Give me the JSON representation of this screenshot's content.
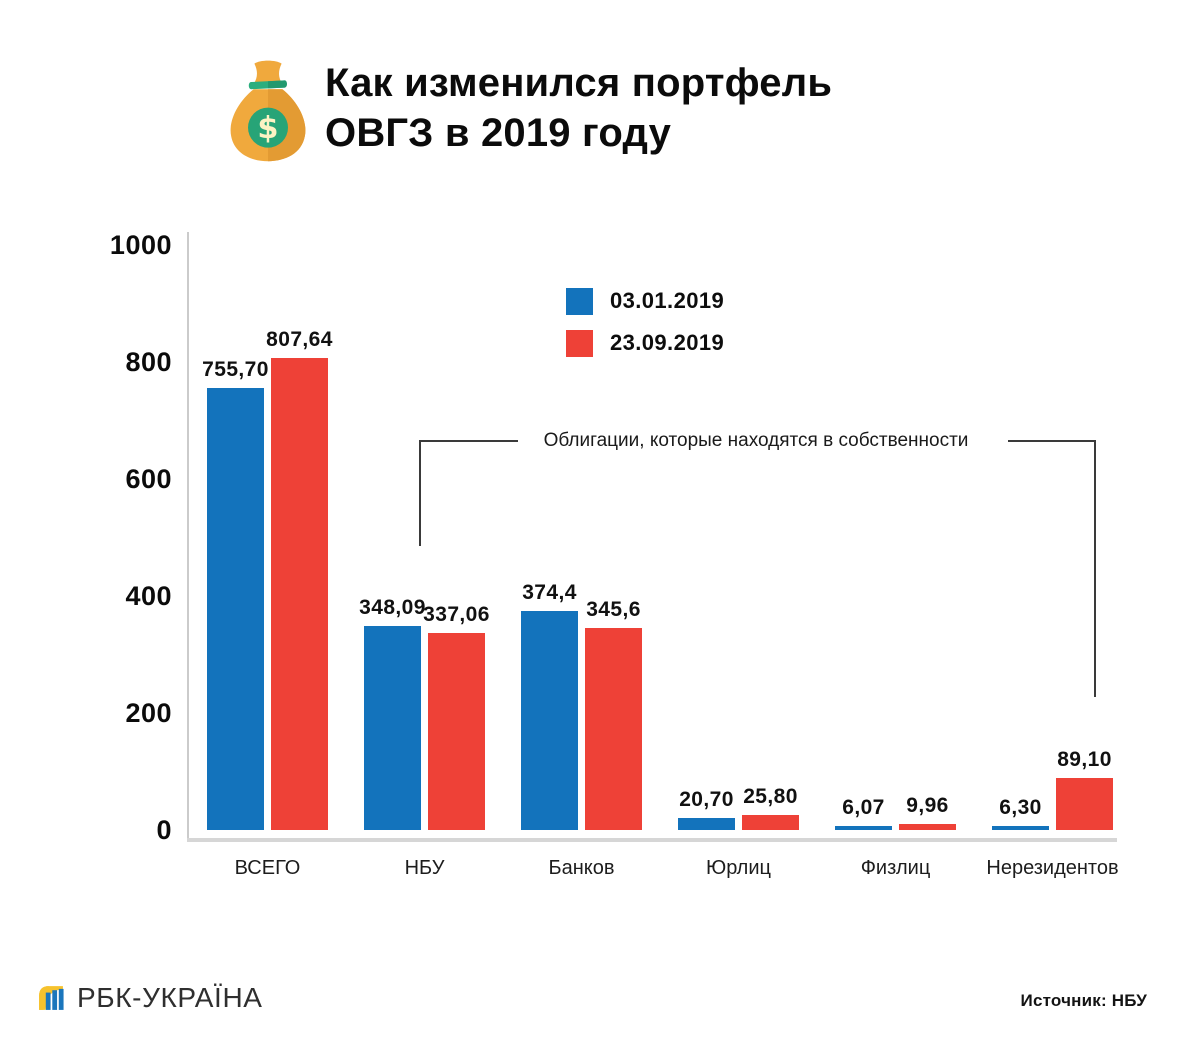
{
  "header": {
    "title_lines": [
      "Как изменился портфель",
      "ОВГЗ в 2019 году"
    ],
    "icon": "money-bag-icon"
  },
  "annotation": {
    "text": "Облигации, которые находятся в собственности"
  },
  "chart_data": {
    "type": "bar",
    "title": "Как изменился портфель ОВГЗ в 2019 году",
    "categories": [
      "ВСЕГО",
      "НБУ",
      "Банков",
      "Юрлиц",
      "Физлиц",
      "Нерезидентов"
    ],
    "series": [
      {
        "name": "03.01.2019",
        "color": "#1373BC",
        "values": [
          755.7,
          348.09,
          374.4,
          20.7,
          6.07,
          6.3
        ],
        "labels": [
          "755,70",
          "348,09",
          "374,4",
          "20,70",
          "6,07",
          "6,30"
        ]
      },
      {
        "name": "23.09.2019",
        "color": "#EE4137",
        "values": [
          807.64,
          337.06,
          345.6,
          25.8,
          9.96,
          89.1
        ],
        "labels": [
          "807,64",
          "337,06",
          "345,6",
          "25,80",
          "9,96",
          "89,10"
        ]
      }
    ],
    "xlabel": "",
    "ylabel": "",
    "ylim": [
      0,
      1000
    ],
    "yticks": [
      1000,
      800,
      600,
      400,
      200,
      0
    ],
    "ytick_labels": [
      "1000",
      "800",
      "600",
      "400",
      "200",
      "0"
    ],
    "grid": false,
    "legend_position": "upper-center",
    "annotation": "Облигации, которые находятся в собственности"
  },
  "footer": {
    "brand": "РБК-УКРАЇНА",
    "source": "Источник: НБУ"
  },
  "icons": {
    "bag": "money-bag-icon",
    "brand": "rbc-ukraine-logo-icon"
  }
}
